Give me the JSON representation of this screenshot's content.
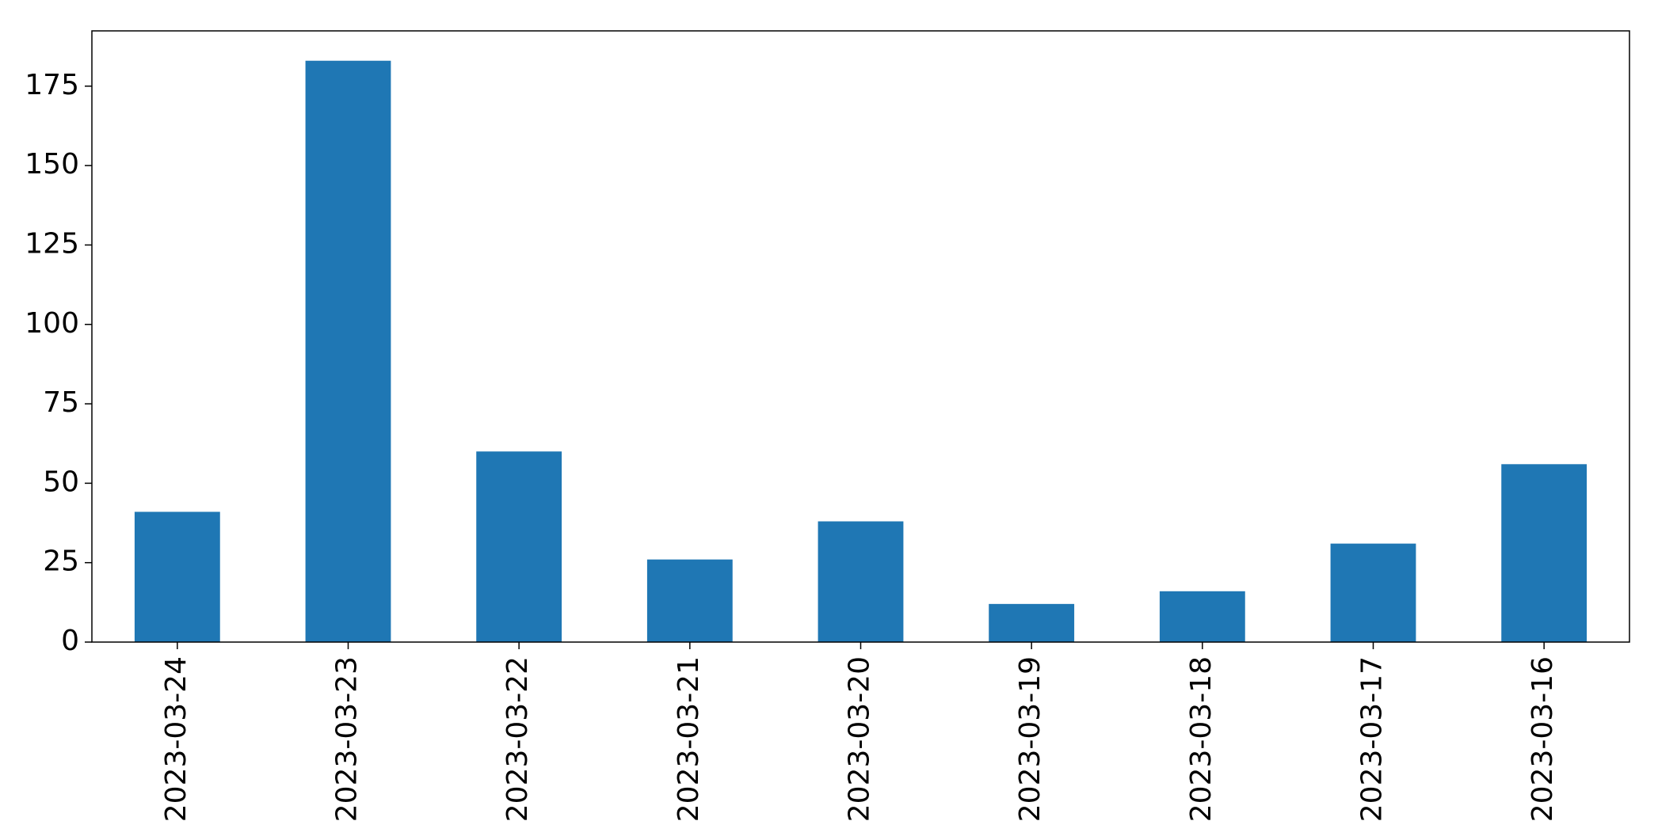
{
  "chart_data": {
    "type": "bar",
    "title": "",
    "xlabel": "",
    "ylabel": "",
    "categories": [
      "2023-03-24",
      "2023-03-23",
      "2023-03-22",
      "2023-03-21",
      "2023-03-20",
      "2023-03-19",
      "2023-03-18",
      "2023-03-17",
      "2023-03-16"
    ],
    "values": [
      41,
      183,
      60,
      26,
      38,
      12,
      16,
      31,
      56
    ],
    "ylim": [
      0,
      192.4
    ],
    "yticks": [
      0,
      25,
      50,
      75,
      100,
      125,
      150,
      175
    ],
    "grid": false,
    "legend": "none",
    "bar_color": "#1f77b4"
  }
}
